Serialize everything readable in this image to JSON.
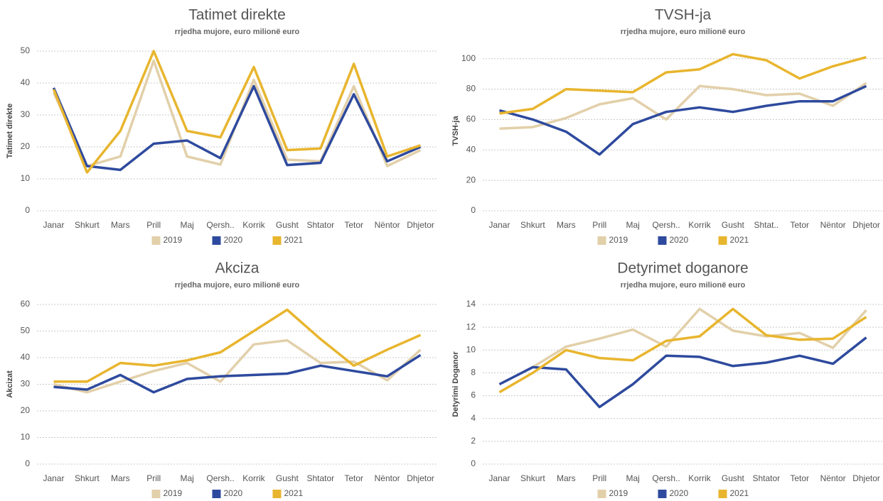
{
  "chart_data": [
    {
      "type": "line",
      "title": "Tatimet direkte",
      "subtitle": "rrjedha mujore, euro milionë euro",
      "y_label": "Tatimet direkte",
      "categories": [
        "Janar",
        "Shkurt",
        "Mars",
        "Prill",
        "Maj",
        "Qersh..",
        "Korrik",
        "Gusht",
        "Shtator",
        "Tetor",
        "Nëntor",
        "Dhjetor"
      ],
      "ylim": [
        0,
        50
      ],
      "yticks": [
        0,
        10,
        20,
        30,
        40,
        50
      ],
      "grid": true,
      "series": [
        {
          "name": "2019",
          "color": "#e2d0aa",
          "values": [
            37,
            14,
            17,
            47,
            17,
            14.5,
            41,
            16,
            15.5,
            39,
            14,
            19
          ]
        },
        {
          "name": "2020",
          "color": "#2e4a9e",
          "values": [
            38.5,
            14,
            12.8,
            21,
            22,
            16.5,
            39,
            14.3,
            15,
            36.5,
            15.5,
            20
          ]
        },
        {
          "name": "2021",
          "color": "#e8b52e",
          "values": [
            38,
            12,
            25,
            50,
            25,
            23,
            45,
            19,
            19.5,
            46,
            17,
            20.5
          ]
        }
      ]
    },
    {
      "type": "line",
      "title": "TVSH-ja",
      "subtitle": "rrjedha mujore, euro milionë euro",
      "y_label": "TVSH-ja",
      "categories": [
        "Janar",
        "Shkurt",
        "Mars",
        "Prill",
        "Maj",
        "Qersh..",
        "Korrik",
        "Gusht",
        "Shtat..",
        "Tetor",
        "Nëntor",
        "Dhjetor"
      ],
      "ylim": [
        0,
        105
      ],
      "yticks": [
        0,
        20,
        40,
        60,
        80,
        100
      ],
      "grid": true,
      "series": [
        {
          "name": "2019",
          "color": "#e2d0aa",
          "values": [
            54,
            55,
            61,
            70,
            74,
            60,
            82,
            80,
            76,
            77,
            69,
            84
          ]
        },
        {
          "name": "2020",
          "color": "#2e4a9e",
          "values": [
            66,
            60,
            52,
            37,
            57,
            65,
            68,
            65,
            69,
            72,
            72,
            82
          ]
        },
        {
          "name": "2021",
          "color": "#e8b52e",
          "values": [
            64,
            67,
            80,
            79,
            78,
            91,
            93,
            103,
            99,
            87,
            95,
            101
          ]
        }
      ]
    },
    {
      "type": "line",
      "title": "Akciza",
      "subtitle": "rrjedha mujore, euro milionë euro",
      "y_label": "Akcizat",
      "categories": [
        "Janar",
        "Shkurt",
        "Mars",
        "Prill",
        "Maj",
        "Qersh..",
        "Korrik",
        "Gusht",
        "Shtator",
        "Tetor",
        "Nëntor",
        "Dhjetor"
      ],
      "ylim": [
        0,
        60
      ],
      "yticks": [
        0,
        10,
        20,
        30,
        40,
        50,
        60
      ],
      "grid": true,
      "series": [
        {
          "name": "2019",
          "color": "#e2d0aa",
          "values": [
            30,
            27,
            31,
            35,
            38,
            31,
            45,
            46.5,
            38,
            38.5,
            31.5,
            43
          ]
        },
        {
          "name": "2020",
          "color": "#2e4a9e",
          "values": [
            29,
            28,
            33.5,
            27,
            32,
            33,
            33.5,
            34,
            37,
            35,
            33,
            41
          ]
        },
        {
          "name": "2021",
          "color": "#e8b52e",
          "values": [
            31,
            31,
            38,
            37,
            39,
            42,
            50,
            58,
            47,
            37,
            43,
            48.5
          ]
        }
      ]
    },
    {
      "type": "line",
      "title": "Detyrimet doganore",
      "subtitle": "rrjedha mujore, euro milionë euro",
      "y_label": "Detyrimi Doganor",
      "categories": [
        "Janar",
        "Shkurt",
        "Mars",
        "Prill",
        "Maj",
        "Qersh..",
        "Korrik",
        "Gusht",
        "Shtator",
        "Tetor",
        "Nëntor",
        "Dhjetor"
      ],
      "ylim": [
        0,
        14
      ],
      "yticks": [
        0,
        2,
        4,
        6,
        8,
        10,
        12,
        14
      ],
      "grid": true,
      "series": [
        {
          "name": "2019",
          "color": "#e2d0aa",
          "values": [
            7,
            8.5,
            10.3,
            11,
            11.8,
            10.3,
            13.6,
            11.7,
            11.2,
            11.5,
            10.2,
            13.5
          ]
        },
        {
          "name": "2020",
          "color": "#2e4a9e",
          "values": [
            7,
            8.5,
            8.3,
            5,
            7,
            9.5,
            9.4,
            8.6,
            8.9,
            9.5,
            8.8,
            11.1
          ]
        },
        {
          "name": "2021",
          "color": "#e8b52e",
          "values": [
            6.3,
            8,
            10,
            9.3,
            9.1,
            10.8,
            11.2,
            13.6,
            11.3,
            10.9,
            11,
            12.9
          ]
        }
      ]
    }
  ]
}
